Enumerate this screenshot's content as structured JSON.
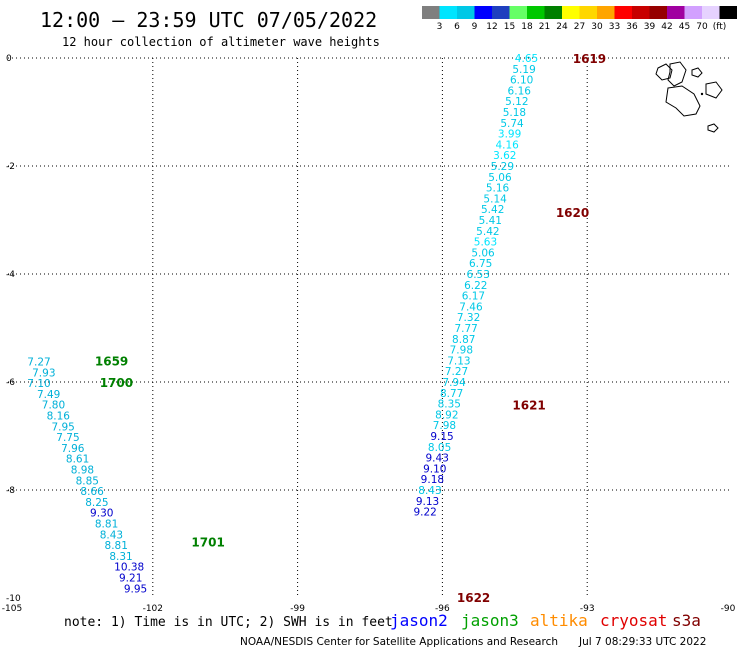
{
  "header": {
    "title": "12:00 – 23:59 UTC 07/05/2022",
    "subtitle": "12 hour collection of altimeter wave heights"
  },
  "legend": {
    "colors": [
      "#7f7f7f",
      "#00e5ff",
      "#00c8e6",
      "#0000ff",
      "#1f3fbf",
      "#66ff66",
      "#00c800",
      "#008000",
      "#ffff00",
      "#ffd700",
      "#ffa500",
      "#ff0000",
      "#c80000",
      "#960000",
      "#a000a0",
      "#d2a0ff",
      "#e6d2ff",
      "#000000"
    ],
    "labels": [
      "3",
      "6",
      "9",
      "12",
      "15",
      "18",
      "21",
      "24",
      "27",
      "30",
      "33",
      "36",
      "39",
      "42",
      "45",
      "70",
      "(ft)"
    ]
  },
  "axes": {
    "lon_min": -105,
    "lon_max": -90,
    "lat_min": -10,
    "lat_max": 0,
    "lat_labels": [
      "0",
      "-2",
      "-4",
      "-6",
      "-8",
      "-10"
    ],
    "lon_labels": [
      "-105",
      "-102",
      "-99",
      "-96",
      "-93",
      "-90"
    ]
  },
  "notes": {
    "note": "note: 1) Time is in UTC; 2) SWH is in feet",
    "credit": "NOAA/NESDIS Center for Satellite Applications and Research",
    "timestamp": "Jul  7 08:29:33 UTC 2022"
  },
  "satellites": [
    {
      "name": "jason2",
      "color": "#0000ff"
    },
    {
      "name": "jason3",
      "color": "#00a000"
    },
    {
      "name": "altika",
      "color": "#ff8c00"
    },
    {
      "name": "cryosat",
      "color": "#e00000"
    },
    {
      "name": "s3a",
      "color": "#800000"
    }
  ],
  "tracks": [
    {
      "id": "track-a",
      "time_color": "#008000",
      "time_labels": [
        {
          "t": "1659",
          "lon": -103.2,
          "lat": -5.6
        },
        {
          "t": "1700",
          "lon": -103.1,
          "lat": -6.0
        },
        {
          "t": "1701",
          "lon": -101.2,
          "lat": -8.95
        }
      ],
      "points": [
        [
          "7.27",
          -104.6,
          -5.62,
          "#00b0d8"
        ],
        [
          "7.93",
          -104.5,
          -5.82,
          "#00b0d8"
        ],
        [
          "7.10",
          -104.6,
          -6.02,
          "#00b0d8"
        ],
        [
          "7.49",
          -104.4,
          -6.22,
          "#00b0d8"
        ],
        [
          "7.80",
          -104.3,
          -6.42,
          "#00b0d8"
        ],
        [
          "8.16",
          -104.2,
          -6.62,
          "#00b0d8"
        ],
        [
          "7.95",
          -104.1,
          -6.82,
          "#00b0d8"
        ],
        [
          "7.75",
          -104.0,
          -7.02,
          "#00b0d8"
        ],
        [
          "7.96",
          -103.9,
          -7.22,
          "#00b0d8"
        ],
        [
          "8.61",
          -103.8,
          -7.42,
          "#00b0d8"
        ],
        [
          "8.98",
          -103.7,
          -7.62,
          "#00b0d8"
        ],
        [
          "8.85",
          -103.6,
          -7.82,
          "#00b0d8"
        ],
        [
          "8.66",
          -103.5,
          -8.02,
          "#00b0d8"
        ],
        [
          "8.25",
          -103.4,
          -8.22,
          "#00b0d8"
        ],
        [
          "9.30",
          -103.3,
          -8.42,
          "#0000cc"
        ],
        [
          "8.81",
          -103.2,
          -8.62,
          "#00b0d8"
        ],
        [
          "8.43",
          -103.1,
          -8.82,
          "#00b0d8"
        ],
        [
          "8.81",
          -103.0,
          -9.02,
          "#00b0d8"
        ],
        [
          "8.31",
          -102.9,
          -9.22,
          "#00b0d8"
        ],
        [
          "10.38",
          -102.8,
          -9.42,
          "#0000cc"
        ],
        [
          "9.21",
          -102.7,
          -9.62,
          "#0000cc"
        ],
        [
          "9.95",
          -102.6,
          -9.82,
          "#0000cc"
        ]
      ]
    },
    {
      "id": "track-b",
      "time_color": "#800000",
      "time_labels": [
        {
          "t": "1619",
          "lon": -93.3,
          "lat": 0.0
        },
        {
          "t": "1620",
          "lon": -93.65,
          "lat": -2.85
        },
        {
          "t": "1621",
          "lon": -94.55,
          "lat": -6.42
        },
        {
          "t": "1622",
          "lon": -95.7,
          "lat": -9.98
        }
      ],
      "points": [
        [
          "4.65",
          -94.5,
          0.0,
          "#00e5ff"
        ],
        [
          "5.19",
          -94.55,
          -0.2,
          "#00c8e6"
        ],
        [
          "6.10",
          -94.6,
          -0.4,
          "#00c8e6"
        ],
        [
          "6.16",
          -94.65,
          -0.6,
          "#00c8e6"
        ],
        [
          "5.12",
          -94.7,
          -0.8,
          "#00c8e6"
        ],
        [
          "5.18",
          -94.75,
          -1.0,
          "#00c8e6"
        ],
        [
          "5.74",
          -94.8,
          -1.2,
          "#00c8e6"
        ],
        [
          "3.99",
          -94.85,
          -1.4,
          "#00e5ff"
        ],
        [
          "4.16",
          -94.9,
          -1.6,
          "#00e5ff"
        ],
        [
          "3.62",
          -94.95,
          -1.8,
          "#00e5ff"
        ],
        [
          "5.29",
          -95.0,
          -2.0,
          "#00c8e6"
        ],
        [
          "5.06",
          -95.05,
          -2.2,
          "#00c8e6"
        ],
        [
          "5.16",
          -95.1,
          -2.4,
          "#00c8e6"
        ],
        [
          "5.14",
          -95.15,
          -2.6,
          "#00c8e6"
        ],
        [
          "5.42",
          -95.2,
          -2.8,
          "#00c8e6"
        ],
        [
          "5.41",
          -95.25,
          -3.0,
          "#00c8e6"
        ],
        [
          "5.42",
          -95.3,
          -3.2,
          "#00c8e6"
        ],
        [
          "5.63",
          -95.35,
          -3.4,
          "#00e5ff"
        ],
        [
          "5.06",
          -95.4,
          -3.6,
          "#00c8e6"
        ],
        [
          "6.75",
          -95.45,
          -3.8,
          "#00c8e6"
        ],
        [
          "6.53",
          -95.5,
          -4.0,
          "#00c8e6"
        ],
        [
          "6.22",
          -95.55,
          -4.2,
          "#00c8e6"
        ],
        [
          "6.17",
          -95.6,
          -4.4,
          "#00c8e6"
        ],
        [
          "7.46",
          -95.65,
          -4.6,
          "#00c8e6"
        ],
        [
          "7.32",
          -95.7,
          -4.8,
          "#00c8e6"
        ],
        [
          "7.77",
          -95.75,
          -5.0,
          "#00c8e6"
        ],
        [
          "8.87",
          -95.8,
          -5.2,
          "#00c8e6"
        ],
        [
          "7.98",
          -95.85,
          -5.4,
          "#00c8e6"
        ],
        [
          "7.13",
          -95.9,
          -5.6,
          "#00c8e6"
        ],
        [
          "7.27",
          -95.95,
          -5.8,
          "#00c8e6"
        ],
        [
          "7.94",
          -96.0,
          -6.0,
          "#00c8e6"
        ],
        [
          "8.77",
          -96.05,
          -6.2,
          "#00c8e6"
        ],
        [
          "8.35",
          -96.1,
          -6.4,
          "#00c8e6"
        ],
        [
          "8.92",
          -96.15,
          -6.6,
          "#00c8e6"
        ],
        [
          "7.98",
          -96.2,
          -6.8,
          "#00c8e6"
        ],
        [
          "9.15",
          -96.25,
          -7.0,
          "#0000cc"
        ],
        [
          "8.05",
          -96.3,
          -7.2,
          "#00c8e6"
        ],
        [
          "9.43",
          -96.35,
          -7.4,
          "#0000cc"
        ],
        [
          "9.10",
          -96.4,
          -7.6,
          "#0000cc"
        ],
        [
          "9.18",
          -96.45,
          -7.8,
          "#0000cc"
        ],
        [
          "8.43",
          -96.5,
          -8.0,
          "#00c8e6"
        ],
        [
          "9.13",
          -96.55,
          -8.2,
          "#0000cc"
        ],
        [
          "9.22",
          -96.6,
          -8.4,
          "#0000cc"
        ]
      ]
    }
  ]
}
